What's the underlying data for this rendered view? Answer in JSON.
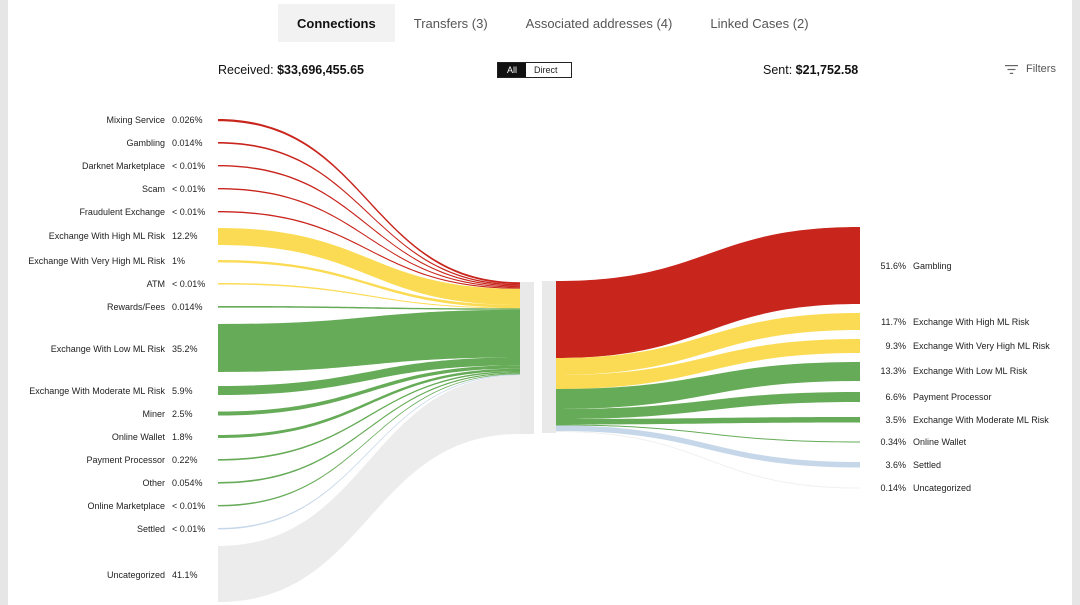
{
  "tabs": [
    {
      "label": "Connections",
      "active": true
    },
    {
      "label": "Transfers (3)",
      "active": false
    },
    {
      "label": "Associated addresses (4)",
      "active": false
    },
    {
      "label": "Linked Cases (2)",
      "active": false
    }
  ],
  "summary": {
    "received_label": "Received:",
    "received_value": "$33,696,455.65",
    "sent_label": "Sent:",
    "sent_value": "$21,752.58"
  },
  "view_toggle": {
    "all": "All",
    "direct": "Direct",
    "selected": "All"
  },
  "filters_label": "Filters",
  "colors": {
    "severe": "#c8251d",
    "high": "#fcdb54",
    "low": "#66ab57",
    "settled": "#c7d7ea",
    "uncategorized": "#ececec"
  },
  "received": [
    {
      "label": "Mixing Service",
      "pct": "0.026%",
      "risk": "severe"
    },
    {
      "label": "Gambling",
      "pct": "0.014%",
      "risk": "severe"
    },
    {
      "label": "Darknet Marketplace",
      "pct": "< 0.01%",
      "risk": "severe"
    },
    {
      "label": "Scam",
      "pct": "< 0.01%",
      "risk": "severe"
    },
    {
      "label": "Fraudulent Exchange",
      "pct": "< 0.01%",
      "risk": "severe"
    },
    {
      "label": "Exchange With High ML Risk",
      "pct": "12.2%",
      "risk": "high"
    },
    {
      "label": "Exchange With Very High ML Risk",
      "pct": "1%",
      "risk": "high"
    },
    {
      "label": "ATM",
      "pct": "< 0.01%",
      "risk": "high"
    },
    {
      "label": "Rewards/Fees",
      "pct": "0.014%",
      "risk": "low"
    },
    {
      "label": "Exchange With Low ML Risk",
      "pct": "35.2%",
      "risk": "low"
    },
    {
      "label": "Exchange With Moderate ML Risk",
      "pct": "5.9%",
      "risk": "low"
    },
    {
      "label": "Miner",
      "pct": "2.5%",
      "risk": "low"
    },
    {
      "label": "Online Wallet",
      "pct": "1.8%",
      "risk": "low"
    },
    {
      "label": "Payment Processor",
      "pct": "0.22%",
      "risk": "low"
    },
    {
      "label": "Other",
      "pct": "0.054%",
      "risk": "low"
    },
    {
      "label": "Online Marketplace",
      "pct": "< 0.01%",
      "risk": "low"
    },
    {
      "label": "Settled",
      "pct": "< 0.01%",
      "risk": "settled"
    },
    {
      "label": "Uncategorized",
      "pct": "41.1%",
      "risk": "uncategorized"
    }
  ],
  "sent": [
    {
      "label": "Gambling",
      "pct": "51.6%",
      "risk": "severe"
    },
    {
      "label": "Exchange With High ML Risk",
      "pct": "11.7%",
      "risk": "high"
    },
    {
      "label": "Exchange With Very High ML Risk",
      "pct": "9.3%",
      "risk": "high"
    },
    {
      "label": "Exchange With Low ML Risk",
      "pct": "13.3%",
      "risk": "low"
    },
    {
      "label": "Payment Processor",
      "pct": "6.6%",
      "risk": "low"
    },
    {
      "label": "Exchange With Moderate ML Risk",
      "pct": "3.5%",
      "risk": "low"
    },
    {
      "label": "Online Wallet",
      "pct": "0.34%",
      "risk": "low"
    },
    {
      "label": "Settled",
      "pct": "3.6%",
      "risk": "settled"
    },
    {
      "label": "Uncategorized",
      "pct": "0.14%",
      "risk": "uncategorized"
    }
  ]
}
